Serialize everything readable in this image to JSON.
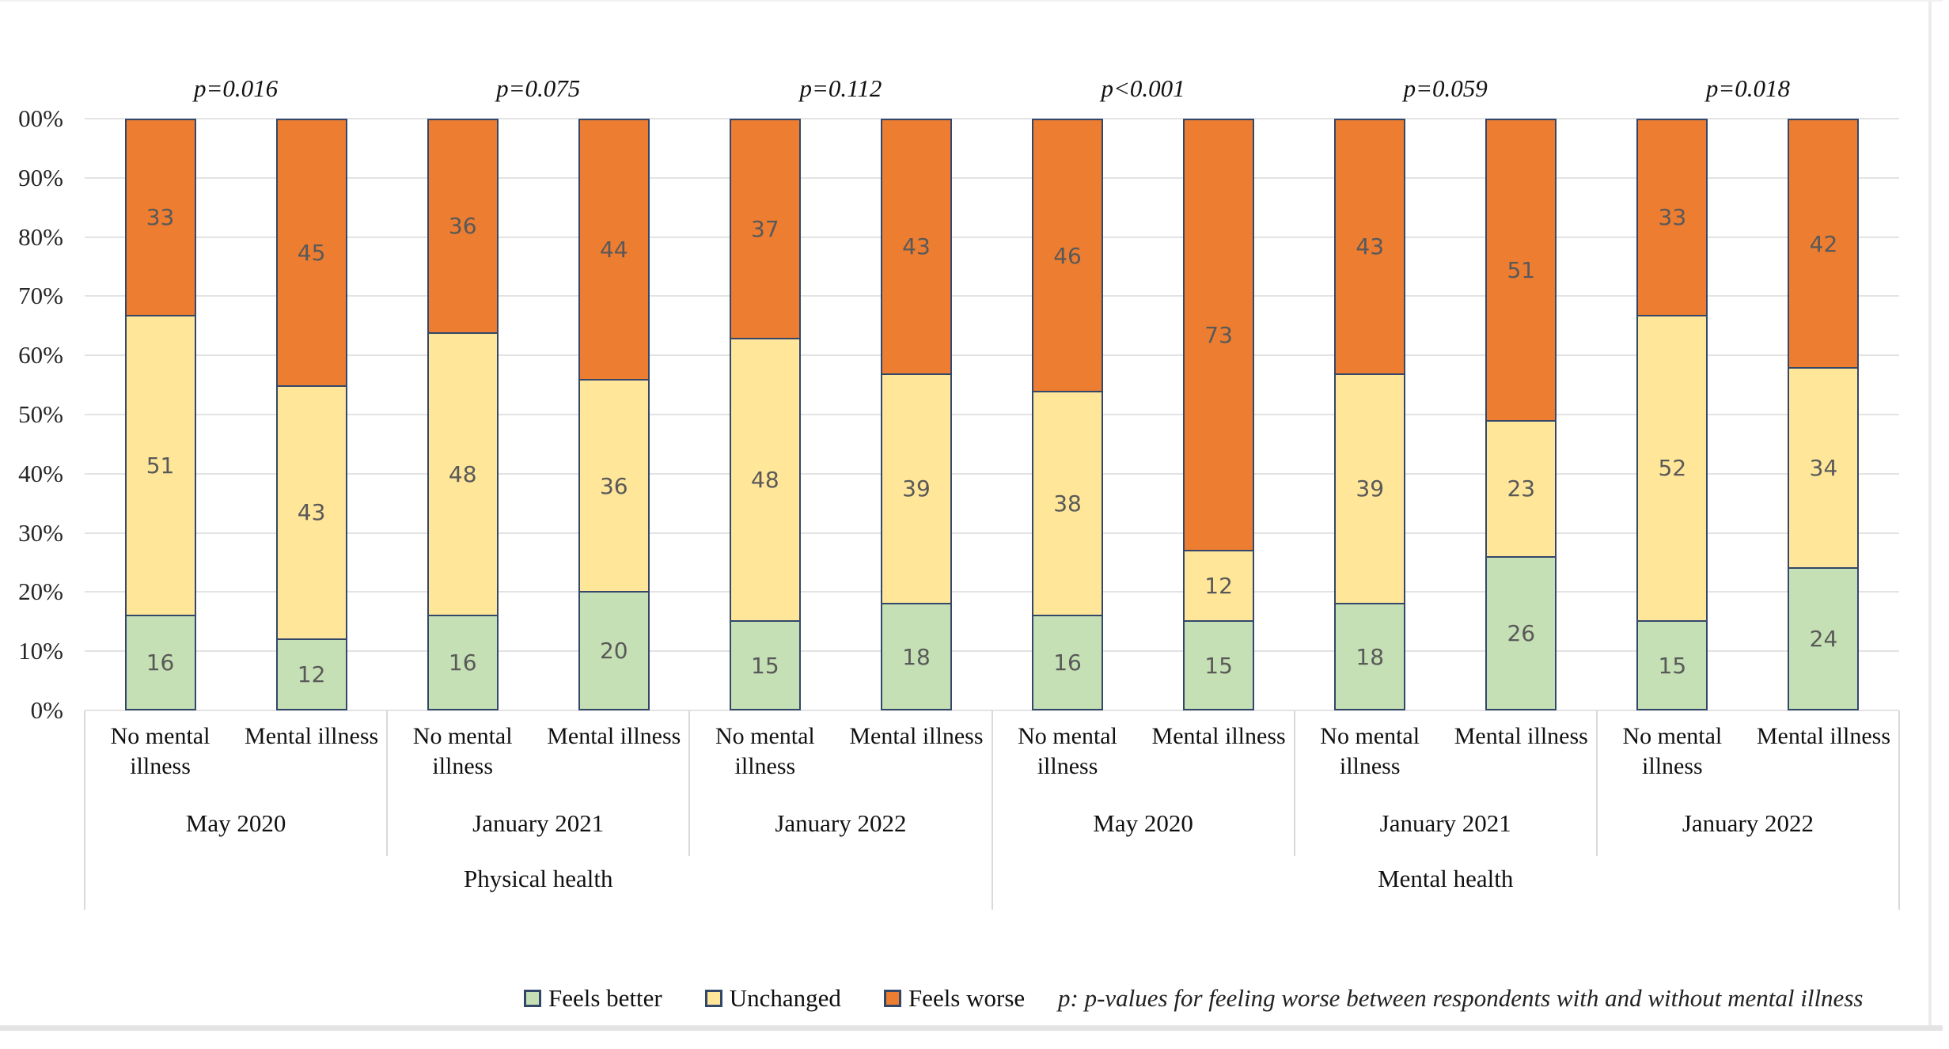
{
  "figure": {
    "footnote": "p: p-values for feeling worse between respondents with and without mental illness"
  },
  "legend": {
    "items": [
      {
        "label": "Feels better",
        "color": "#c5e0b4"
      },
      {
        "label": "Unchanged",
        "color": "#ffe699"
      },
      {
        "label": "Feels worse",
        "color": "#ed7d31"
      }
    ]
  },
  "chart_data": {
    "type": "bar",
    "subtype": "100-percent-stacked-column",
    "unit": "percent",
    "title": "",
    "xlabel": "",
    "ylabel": "",
    "y_axis": {
      "min": 0,
      "max": 100,
      "grid": true,
      "ticks": [
        "0%",
        "10%",
        "20%",
        "30%",
        "40%",
        "50%",
        "60%",
        "70%",
        "80%",
        "90%",
        "00%"
      ]
    },
    "legend_position": "bottom",
    "series": [
      {
        "name": "Feels better",
        "color": "#c5e0b4"
      },
      {
        "name": "Unchanged",
        "color": "#ffe699"
      },
      {
        "name": "Feels worse",
        "color": "#ed7d31"
      }
    ],
    "sections": [
      {
        "label": "Physical health",
        "groups": [
          {
            "period": "May 2020",
            "p_value": "p=0.016",
            "bars": [
              {
                "label": "No mental illness",
                "values": [
                  16,
                  51,
                  33
                ]
              },
              {
                "label": "Mental illness",
                "values": [
                  12,
                  43,
                  45
                ]
              }
            ]
          },
          {
            "period": "January 2021",
            "p_value": "p=0.075",
            "bars": [
              {
                "label": "No mental illness",
                "values": [
                  16,
                  48,
                  36
                ]
              },
              {
                "label": "Mental illness",
                "values": [
                  20,
                  36,
                  44
                ]
              }
            ]
          },
          {
            "period": "January 2022",
            "p_value": "p=0.112",
            "bars": [
              {
                "label": "No mental illness",
                "values": [
                  15,
                  48,
                  37
                ]
              },
              {
                "label": "Mental illness",
                "values": [
                  18,
                  39,
                  43
                ]
              }
            ]
          }
        ]
      },
      {
        "label": "Mental health",
        "groups": [
          {
            "period": "May 2020",
            "p_value": "p<0.001",
            "bars": [
              {
                "label": "No mental illness",
                "values": [
                  16,
                  38,
                  46
                ]
              },
              {
                "label": "Mental illness",
                "values": [
                  15,
                  12,
                  73
                ]
              }
            ]
          },
          {
            "period": "January 2021",
            "p_value": "p=0.059",
            "bars": [
              {
                "label": "No mental illness",
                "values": [
                  18,
                  39,
                  43
                ]
              },
              {
                "label": "Mental illness",
                "values": [
                  26,
                  23,
                  51
                ]
              }
            ]
          },
          {
            "period": "January 2022",
            "p_value": "p=0.018",
            "bars": [
              {
                "label": "No mental illness",
                "values": [
                  15,
                  52,
                  33
                ]
              },
              {
                "label": "Mental illness",
                "values": [
                  24,
                  34,
                  42
                ]
              }
            ]
          }
        ]
      }
    ],
    "style": {
      "bar_border_color": "#33476b",
      "value_label_color": "#595959",
      "gridline_color": "#e3e3e3",
      "divider_color": "#d9d9d9"
    }
  }
}
